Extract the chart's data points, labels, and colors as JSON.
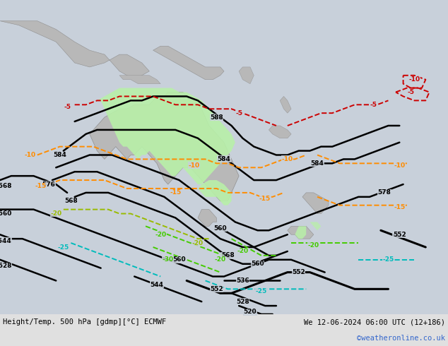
{
  "title_left": "Height/Temp. 500 hPa [gdmp][°C] ECMWF",
  "title_right": "We 12-06-2024 06:00 UTC (12+186)",
  "watermark": "©weatheronline.co.uk",
  "bg_ocean": "#c8d0da",
  "bg_bar": "#e0e0e0",
  "land_color": "#b8b8b8",
  "land_edge": "#909090",
  "green_fill": "#b8f0a8",
  "lon_min": 90,
  "lon_max": 210,
  "lat_min": 10,
  "lat_max": -65,
  "fig_width": 6.34,
  "fig_height": 4.9,
  "dpi": 100
}
